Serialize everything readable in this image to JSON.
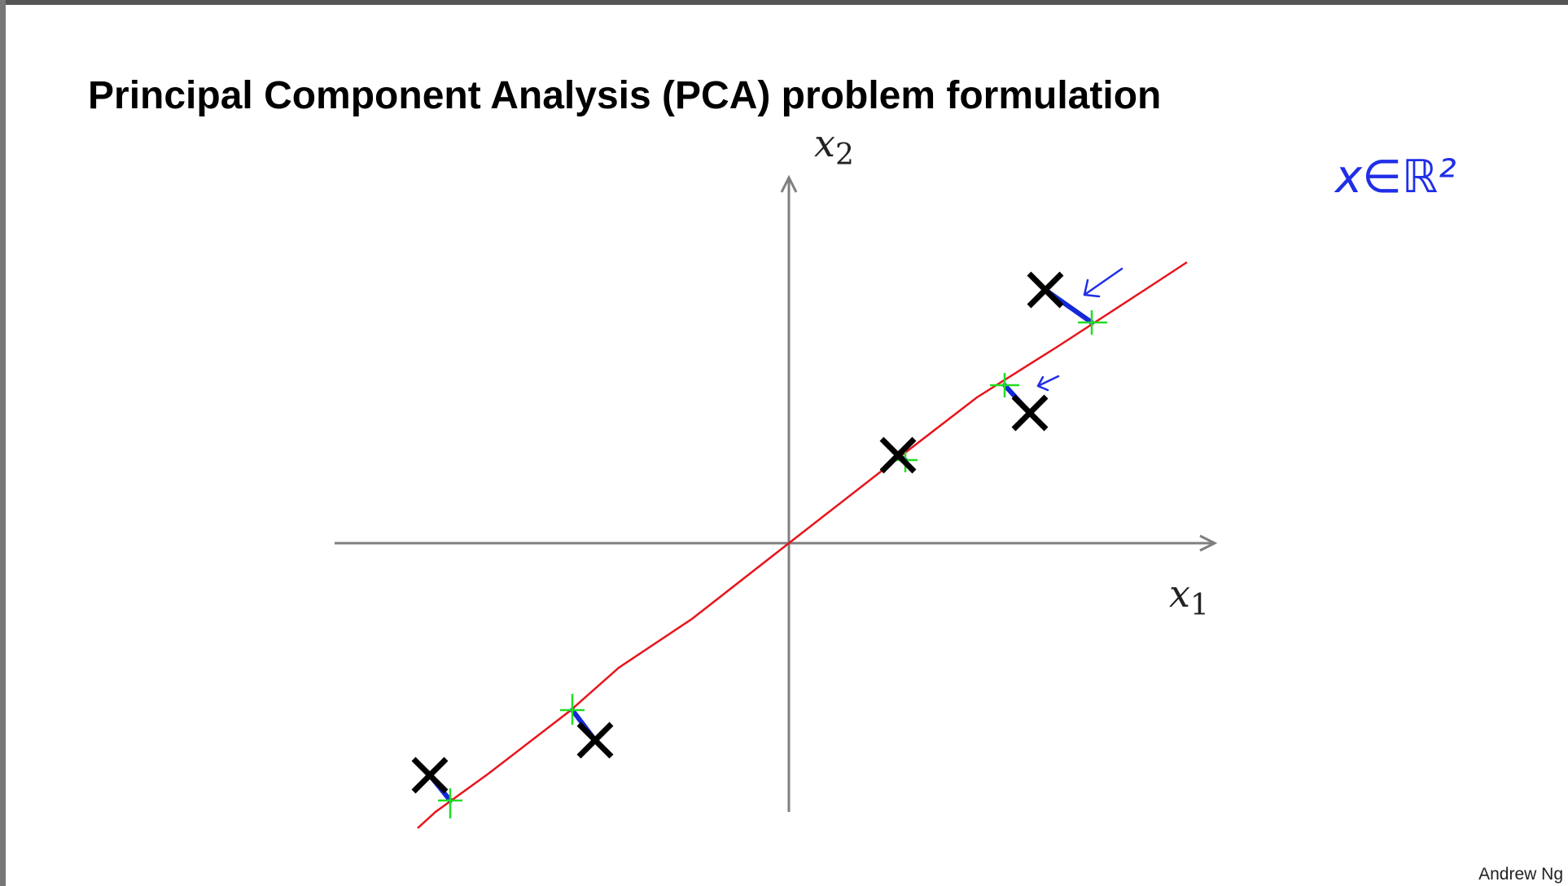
{
  "title": "Principal Component Analysis (PCA) problem formulation",
  "axes": {
    "x_label": "x",
    "x_sub": "1",
    "y_label": "x",
    "y_sub": "2"
  },
  "annotation": "x∈ℝ²",
  "footer": "Andrew Ng"
}
